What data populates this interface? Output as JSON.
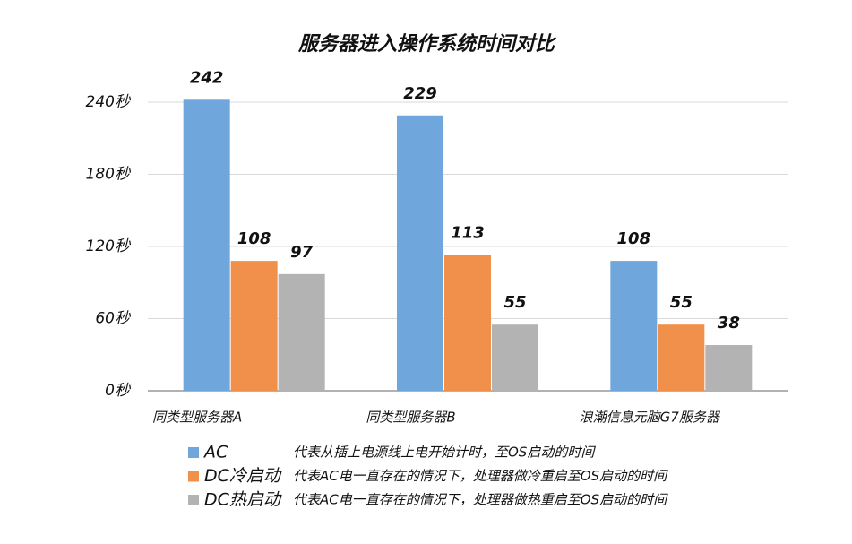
{
  "chart_data": {
    "type": "bar",
    "title": "服务器进入操作系统时间对比",
    "categories": [
      "同类型服务器A",
      "同类型服务器B",
      "浪潮信息元脑G7服务器"
    ],
    "series": [
      {
        "name": "AC",
        "description": "代表从插上电源线上电开始计时，至OS启动的时间",
        "color": "#6fa6db",
        "values": [
          242,
          229,
          108
        ]
      },
      {
        "name": "DC冷启动",
        "description": "代表AC电一直存在的情况下，处理器做冷重启至OS启动的时间",
        "color": "#f0904a",
        "values": [
          108,
          113,
          55
        ]
      },
      {
        "name": "DC热启动",
        "description": "代表AC电一直存在的情况下，处理器做热重启至OS启动的时间",
        "color": "#b3b3b3",
        "values": [
          97,
          55,
          38
        ]
      }
    ],
    "ylim": [
      0,
      240
    ],
    "yticks": [
      {
        "value": 0,
        "label": "0秒"
      },
      {
        "value": 60,
        "label": "60秒"
      },
      {
        "value": 120,
        "label": "120秒"
      },
      {
        "value": 180,
        "label": "180秒"
      },
      {
        "value": 240,
        "label": "240秒"
      }
    ],
    "grid": true
  }
}
